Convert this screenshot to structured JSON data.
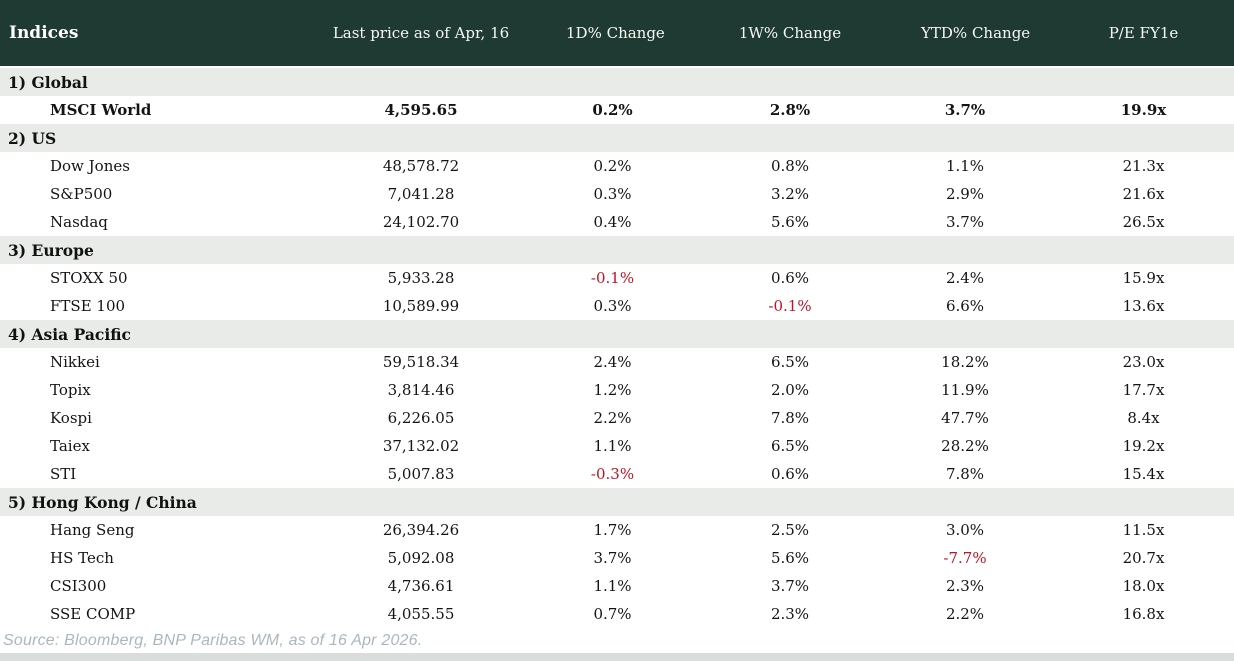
{
  "colors": {
    "header_bg": "#1E3A33",
    "section_row_bg": "#E8EBE7",
    "positive_change": "#038224",
    "negative_change": "#C01325",
    "body_text": "#141414",
    "footer_text": "#A9B7C0",
    "bottom_bar": "#D9DDDB"
  },
  "chart_data": {
    "type": "table",
    "title": "Indices",
    "columns": [
      "Indices",
      "Last price as of Apr, 16",
      "1D% Change",
      "1W% Change",
      "YTD% Change",
      "P/E FY1e"
    ],
    "sections": [
      {
        "label": "1) Global",
        "rows": [
          {
            "name": "MSCI World",
            "price": "4,595.65",
            "d1": "0.2%",
            "w1": "2.8%",
            "ytd": "3.7%",
            "pe": "19.9x",
            "emphasis": true
          }
        ]
      },
      {
        "label": "2) US",
        "rows": [
          {
            "name": "Dow Jones",
            "price": "48,578.72",
            "d1": "0.2%",
            "w1": "0.8%",
            "ytd": "1.1%",
            "pe": "21.3x"
          },
          {
            "name": "S&P500",
            "price": "7,041.28",
            "d1": "0.3%",
            "w1": "3.2%",
            "ytd": "2.9%",
            "pe": "21.6x"
          },
          {
            "name": "Nasdaq",
            "price": "24,102.70",
            "d1": "0.4%",
            "w1": "5.6%",
            "ytd": "3.7%",
            "pe": "26.5x"
          }
        ]
      },
      {
        "label": "3) Europe",
        "rows": [
          {
            "name": "STOXX 50",
            "price": "5,933.28",
            "d1": "-0.1%",
            "w1": "0.6%",
            "ytd": "2.4%",
            "pe": "15.9x"
          },
          {
            "name": "FTSE 100",
            "price": "10,589.99",
            "d1": "0.3%",
            "w1": "-0.1%",
            "ytd": "6.6%",
            "pe": "13.6x"
          }
        ]
      },
      {
        "label": "4) Asia Pacific",
        "rows": [
          {
            "name": "Nikkei",
            "price": "59,518.34",
            "d1": "2.4%",
            "w1": "6.5%",
            "ytd": "18.2%",
            "pe": "23.0x"
          },
          {
            "name": "Topix",
            "price": "3,814.46",
            "d1": "1.2%",
            "w1": "2.0%",
            "ytd": "11.9%",
            "pe": "17.7x"
          },
          {
            "name": "Kospi",
            "price": "6,226.05",
            "d1": "2.2%",
            "w1": "7.8%",
            "ytd": "47.7%",
            "pe": "8.4x"
          },
          {
            "name": "Taiex",
            "price": "37,132.02",
            "d1": "1.1%",
            "w1": "6.5%",
            "ytd": "28.2%",
            "pe": "19.2x"
          },
          {
            "name": "STI",
            "price": "5,007.83",
            "d1": "-0.3%",
            "w1": "0.6%",
            "ytd": "7.8%",
            "pe": "15.4x"
          }
        ]
      },
      {
        "label": "5) Hong Kong / China",
        "rows": [
          {
            "name": "Hang Seng",
            "price": "26,394.26",
            "d1": "1.7%",
            "w1": "2.5%",
            "ytd": "3.0%",
            "pe": "11.5x"
          },
          {
            "name": "HS Tech",
            "price": "5,092.08",
            "d1": "3.7%",
            "w1": "5.6%",
            "ytd": "-7.7%",
            "pe": "20.7x"
          },
          {
            "name": "CSI300",
            "price": "4,736.61",
            "d1": "1.1%",
            "w1": "3.7%",
            "ytd": "2.3%",
            "pe": "18.0x"
          },
          {
            "name": "SSE COMP",
            "price": "4,055.55",
            "d1": "0.7%",
            "w1": "2.3%",
            "ytd": "2.2%",
            "pe": "16.8x"
          }
        ]
      }
    ]
  },
  "footer": {
    "source": "Source: Bloomberg, BNP Paribas WM, as of 16 Apr 2026."
  }
}
